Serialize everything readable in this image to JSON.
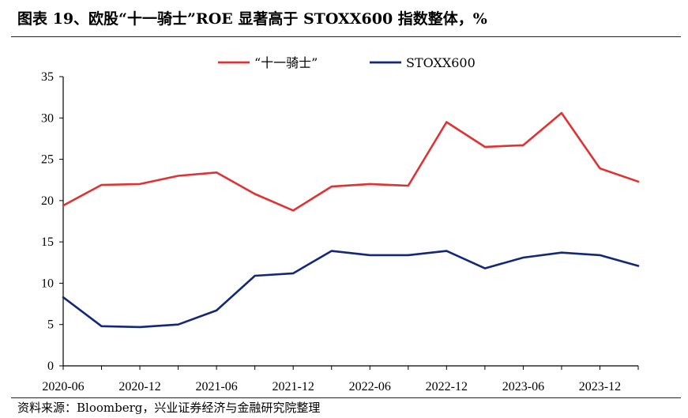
{
  "header": {
    "title": "图表 19、欧股“十一骑士”ROE 显著高于 STOXX600 指数整体，%"
  },
  "footer": {
    "source": "资料来源：Bloomberg，兴业证券经济与金融研究院整理"
  },
  "chart_data": {
    "type": "line",
    "x": [
      "2020-06",
      "2020-09",
      "2020-12",
      "2021-03",
      "2021-06",
      "2021-09",
      "2021-12",
      "2022-03",
      "2022-06",
      "2022-09",
      "2022-12",
      "2023-03",
      "2023-06",
      "2023-09",
      "2023-12",
      "2024-03"
    ],
    "x_tick_labels": [
      "2020-06",
      "2020-12",
      "2021-06",
      "2021-12",
      "2022-06",
      "2022-12",
      "2023-06",
      "2023-12"
    ],
    "ylim": [
      0,
      35
    ],
    "y_ticks": [
      0,
      5,
      10,
      15,
      20,
      25,
      30,
      35
    ],
    "legend_position": "top-center",
    "grid": false,
    "series": [
      {
        "name": "“十一骑士”",
        "color": "#e03232",
        "values": [
          19.4,
          21.9,
          22.0,
          23.0,
          23.4,
          20.8,
          18.8,
          21.7,
          22.0,
          21.8,
          29.5,
          26.5,
          26.7,
          30.6,
          23.9,
          22.3
        ]
      },
      {
        "name": "STOXX600",
        "color": "#14287a",
        "values": [
          8.3,
          4.8,
          4.7,
          5.0,
          6.7,
          10.9,
          11.2,
          13.9,
          13.4,
          13.4,
          13.9,
          11.8,
          13.1,
          13.7,
          13.4,
          12.1
        ]
      }
    ]
  }
}
